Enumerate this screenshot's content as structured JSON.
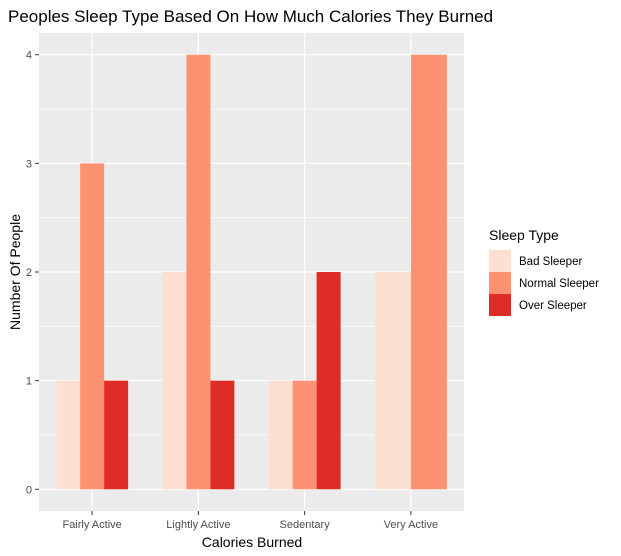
{
  "chart_data": {
    "type": "bar",
    "title": "Peoples Sleep Type Based On How Much Calories They Burned",
    "xlabel": "Calories Burned",
    "ylabel": "Number Of People",
    "categories": [
      "Fairly Active",
      "Lightly Active",
      "Sedentary",
      "Very Active"
    ],
    "series": [
      {
        "name": "Bad Sleeper",
        "values": [
          1,
          2,
          1,
          2
        ],
        "color": "#fee0d2"
      },
      {
        "name": "Normal Sleeper",
        "values": [
          3,
          4,
          1,
          4
        ],
        "color": "#fc9272"
      },
      {
        "name": "Over Sleeper",
        "values": [
          1,
          1,
          2,
          null
        ],
        "color": "#de2d26"
      }
    ],
    "yticks": [
      "0",
      "1",
      "2",
      "3",
      "4"
    ],
    "ylim": [
      -0.2,
      4.2
    ],
    "grid": true,
    "panel_background": "#ebebeb",
    "legend": {
      "title": "Sleep Type",
      "position": "right"
    }
  }
}
